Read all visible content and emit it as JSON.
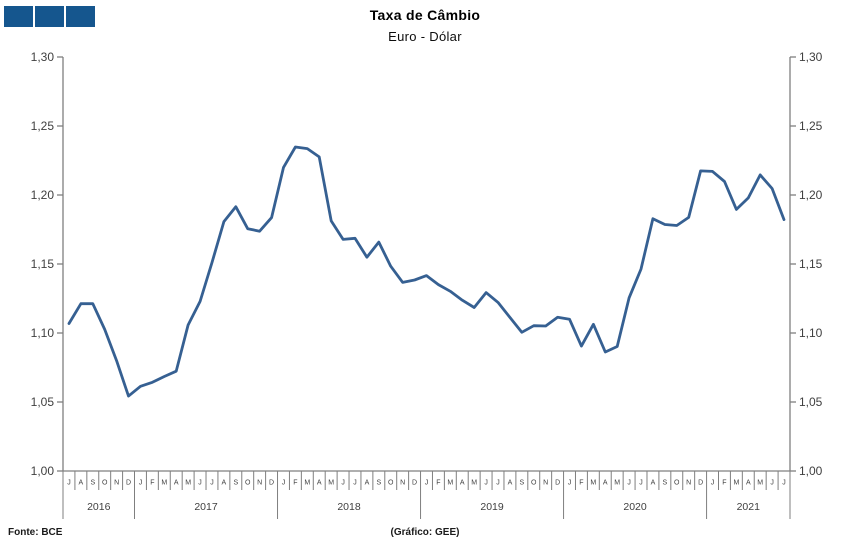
{
  "logo": {
    "square_count": 3,
    "square_color": "#15568E"
  },
  "header": {
    "title": "Taxa de Câmbio",
    "subtitle": "Euro - Dólar"
  },
  "footer": {
    "source": "Fonte: BCE",
    "credit": "(Gráfico: GEE)"
  },
  "chart_data": {
    "type": "line",
    "title": "Taxa de Câmbio",
    "subtitle": "Euro - Dólar",
    "ylabel": "",
    "xlabel": "",
    "ylim": [
      1.0,
      1.3
    ],
    "ytick_values": [
      1.0,
      1.05,
      1.1,
      1.15,
      1.2,
      1.25,
      1.3
    ],
    "ytick_labels": [
      "1,00",
      "1,05",
      "1,10",
      "1,15",
      "1,20",
      "1,25",
      "1,30"
    ],
    "y_axis_sides": [
      "left",
      "right"
    ],
    "grid": false,
    "legend": "none",
    "line_color": "#366092",
    "axis_color": "#7f7f7f",
    "label_color": "#3f3f3f",
    "x_month_letters": [
      "J",
      "A",
      "S",
      "O",
      "N",
      "D",
      "J",
      "F",
      "M",
      "A",
      "M",
      "J",
      "J",
      "A",
      "S",
      "O",
      "N",
      "D",
      "J",
      "F",
      "M",
      "A",
      "M",
      "J",
      "J",
      "A",
      "S",
      "O",
      "N",
      "D",
      "J",
      "F",
      "M",
      "A",
      "M",
      "J",
      "J",
      "A",
      "S",
      "O",
      "N",
      "D",
      "J",
      "F",
      "M",
      "A",
      "M",
      "J",
      "J",
      "A",
      "S",
      "O",
      "N",
      "D",
      "J",
      "F",
      "M",
      "A",
      "M",
      "J",
      "J"
    ],
    "year_groups": [
      {
        "label": "2016",
        "count": 6
      },
      {
        "label": "2017",
        "count": 12
      },
      {
        "label": "2018",
        "count": 12
      },
      {
        "label": "2019",
        "count": 12
      },
      {
        "label": "2020",
        "count": 12
      },
      {
        "label": "2021",
        "count": 7
      }
    ],
    "values": [
      1.1069,
      1.1212,
      1.1212,
      1.1026,
      1.0799,
      1.0543,
      1.0614,
      1.0643,
      1.0685,
      1.0723,
      1.1058,
      1.1229,
      1.1511,
      1.1807,
      1.1915,
      1.1756,
      1.1738,
      1.1836,
      1.22,
      1.2348,
      1.2336,
      1.2276,
      1.1812,
      1.1678,
      1.1686,
      1.1549,
      1.1659,
      1.1484,
      1.1367,
      1.1384,
      1.1416,
      1.1351,
      1.1302,
      1.1238,
      1.1185,
      1.1293,
      1.1222,
      1.1113,
      1.1005,
      1.1053,
      1.1051,
      1.1114,
      1.11,
      1.0905,
      1.1063,
      1.0862,
      1.0902,
      1.1255,
      1.1463,
      1.1828,
      1.1786,
      1.1779,
      1.1838,
      1.2175,
      1.2171,
      1.2098,
      1.1896,
      1.1979,
      1.2146,
      1.2047,
      1.1822
    ]
  }
}
